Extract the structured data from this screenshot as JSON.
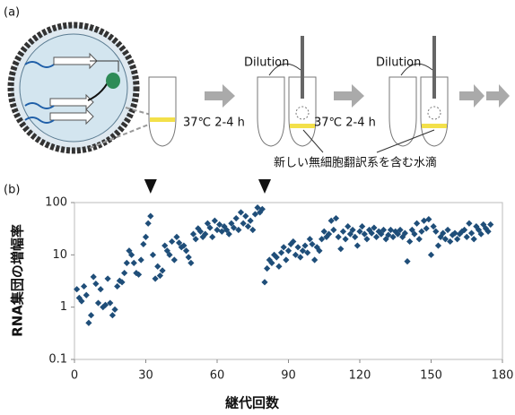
{
  "panel_a": {
    "label": "(a)",
    "dilution": [
      "Dilution",
      "Dilution"
    ],
    "incubation": [
      "37℃ 2-4 h",
      "37℃ 2-4 h"
    ],
    "droplet_note": "新しい無細胞翻訳系を含む水滴"
  },
  "chart_data": {
    "type": "scatter",
    "panel_label": "(b)",
    "x_label": "継代回数",
    "y_label": "RNA集団の増幅率",
    "color": "#1f4e79",
    "log_y": true,
    "grid": false,
    "xlim": [
      0,
      180
    ],
    "xticks": [
      0,
      30,
      60,
      90,
      120,
      150,
      180
    ],
    "ylim": [
      0.1,
      100
    ],
    "yticks": [
      0.1,
      1,
      10,
      100
    ],
    "arrows_x": [
      32,
      80
    ],
    "x": [
      1,
      2,
      3,
      4,
      5,
      6,
      7,
      8,
      9,
      10,
      11,
      12,
      13,
      14,
      15,
      16,
      17,
      18,
      19,
      20,
      21,
      22,
      23,
      24,
      25,
      26,
      27,
      28,
      29,
      30,
      31,
      32,
      33,
      34,
      35,
      36,
      37,
      38,
      39,
      40,
      41,
      42,
      43,
      44,
      45,
      46,
      47,
      48,
      49,
      50,
      51,
      52,
      53,
      54,
      55,
      56,
      57,
      58,
      59,
      60,
      61,
      62,
      63,
      64,
      65,
      66,
      67,
      68,
      69,
      70,
      71,
      72,
      73,
      74,
      75,
      76,
      77,
      78,
      79,
      80,
      81,
      82,
      83,
      84,
      85,
      86,
      87,
      88,
      89,
      90,
      91,
      92,
      93,
      94,
      95,
      96,
      97,
      98,
      99,
      100,
      101,
      102,
      103,
      104,
      105,
      106,
      107,
      108,
      109,
      110,
      111,
      112,
      113,
      114,
      115,
      116,
      117,
      118,
      119,
      120,
      121,
      122,
      123,
      124,
      125,
      126,
      127,
      128,
      129,
      130,
      131,
      132,
      133,
      134,
      135,
      136,
      137,
      138,
      139,
      140,
      141,
      142,
      143,
      144,
      145,
      146,
      147,
      148,
      149,
      150,
      151,
      152,
      153,
      154,
      155,
      156,
      157,
      158,
      159,
      160,
      161,
      162,
      163,
      164,
      165,
      166,
      167,
      168,
      169,
      170,
      171,
      172,
      173,
      174,
      175
    ],
    "values": [
      2.2,
      1.5,
      1.3,
      2.5,
      1.7,
      0.5,
      0.7,
      3.8,
      2.8,
      1.2,
      2.2,
      1.0,
      1.1,
      3.5,
      1.2,
      0.7,
      0.9,
      2.5,
      3.2,
      3.0,
      4.5,
      7,
      12,
      10,
      7,
      4.5,
      4.2,
      8,
      16,
      22,
      40,
      55,
      10,
      3.5,
      6,
      4,
      5,
      15,
      12,
      10,
      18,
      8,
      22,
      17,
      14,
      15,
      12,
      9,
      7,
      25,
      20,
      32,
      28,
      22,
      25,
      40,
      33,
      22,
      45,
      30,
      38,
      28,
      35,
      30,
      25,
      40,
      33,
      50,
      30,
      65,
      40,
      55,
      35,
      45,
      30,
      60,
      80,
      65,
      75,
      3,
      5.5,
      8,
      7,
      10,
      9,
      6,
      11,
      14,
      8,
      12,
      16,
      18,
      10,
      14,
      9,
      12,
      15,
      11,
      20,
      16,
      8,
      14,
      12,
      20,
      28,
      22,
      25,
      45,
      30,
      50,
      22,
      13,
      28,
      20,
      35,
      25,
      30,
      22,
      15,
      28,
      35,
      25,
      20,
      30,
      26,
      33,
      22,
      28,
      25,
      30,
      20,
      24,
      30,
      22,
      28,
      25,
      30,
      22,
      26,
      7.5,
      18,
      30,
      25,
      40,
      20,
      28,
      45,
      32,
      48,
      10,
      35,
      28,
      15,
      22,
      26,
      20,
      30,
      18,
      24,
      26,
      20,
      25,
      28,
      30,
      22,
      40,
      26,
      20,
      35,
      30,
      25,
      38,
      32,
      28,
      38
    ]
  }
}
